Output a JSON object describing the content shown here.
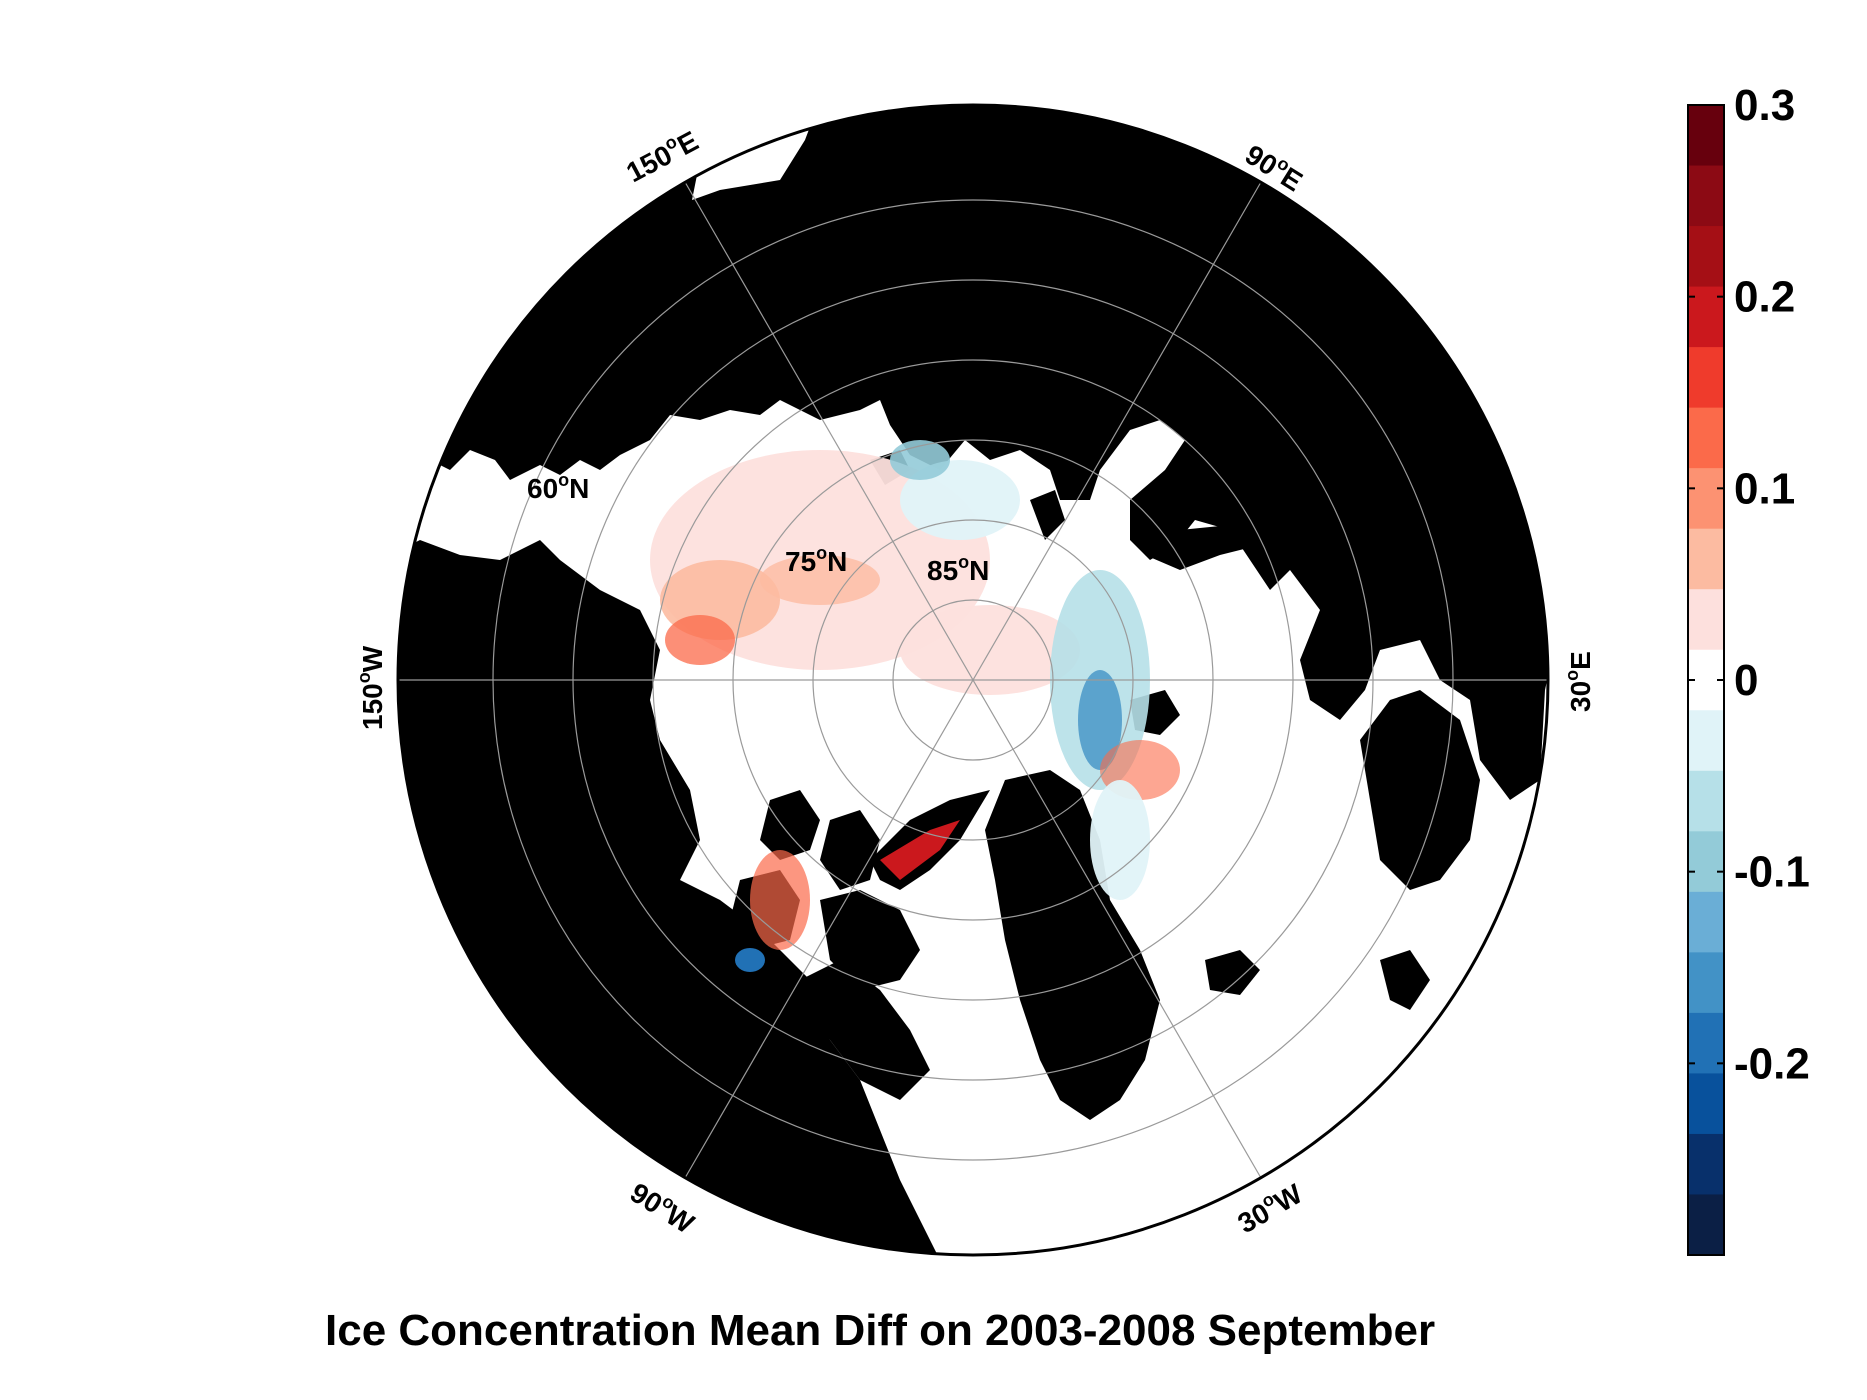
{
  "title": "Ice Concentration Mean Diff on 2003-2008 September",
  "map": {
    "projection": "north polar stereographic",
    "latitude_labels": [
      {
        "deg": "60",
        "hemi": "N"
      },
      {
        "deg": "75",
        "hemi": "N"
      },
      {
        "deg": "85",
        "hemi": "N"
      }
    ],
    "longitude_labels": [
      {
        "deg": "150",
        "hemi": "E"
      },
      {
        "deg": "90",
        "hemi": "E"
      },
      {
        "deg": "150",
        "hemi": "W"
      },
      {
        "deg": "30",
        "hemi": "E"
      },
      {
        "deg": "90",
        "hemi": "W"
      },
      {
        "deg": "30",
        "hemi": "W"
      }
    ],
    "land_color": "#000000",
    "ocean_color": "#ffffff",
    "grid_color": "#9a9a9a"
  },
  "colorbar": {
    "tick_labels": [
      "0.3",
      "0.2",
      "0.1",
      "0",
      "-0.1",
      "-0.2"
    ],
    "tick_values": [
      0.3,
      0.2,
      0.1,
      0.0,
      -0.1,
      -0.2
    ],
    "min": -0.3,
    "max": 0.3,
    "colors_top_to_bottom": [
      "#67000d",
      "#8c0a14",
      "#a50f15",
      "#cb181d",
      "#ef3b2c",
      "#fb6a4a",
      "#fc9272",
      "#fcbba1",
      "#fde0dd",
      "#ffffff",
      "#e0f3f8",
      "#b6e0e8",
      "#93cbd8",
      "#6aaed6",
      "#4292c6",
      "#2171b5",
      "#08519c",
      "#08306b",
      "#0b1f45"
    ]
  }
}
